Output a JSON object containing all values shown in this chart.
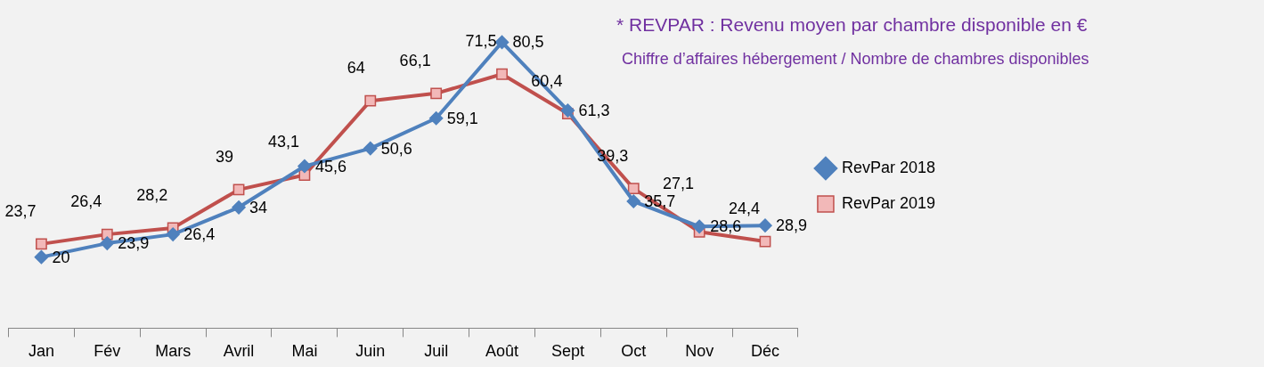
{
  "chart_data": {
    "type": "line",
    "categories": [
      "Jan",
      "Fév",
      "Mars",
      "Avril",
      "Mai",
      "Juin",
      "Juil",
      "Août",
      "Sept",
      "Oct",
      "Nov",
      "Déc"
    ],
    "series": [
      {
        "name": "RevPar 2018",
        "color": "#4f81bd",
        "marker": "diamond",
        "values": [
          20,
          23.9,
          26.4,
          34,
          45.6,
          50.6,
          59.1,
          80.5,
          61.3,
          35.7,
          28.6,
          28.9
        ],
        "value_labels": [
          "20",
          "23,9",
          "26,4",
          "34",
          "45,6",
          "50,6",
          "59,1",
          "80,5",
          "61,3",
          "35,7",
          "28,6",
          "28,9"
        ]
      },
      {
        "name": "RevPar 2019",
        "color": "#c0504d",
        "marker": "square",
        "values": [
          23.7,
          26.4,
          28.2,
          39,
          43.1,
          64,
          66.1,
          71.5,
          60.4,
          39.3,
          27.1,
          24.4
        ],
        "value_labels": [
          "23,7",
          "26,4",
          "28,2",
          "39",
          "43,1",
          "64",
          "66,1",
          "71,5",
          "60,4",
          "39,3",
          "27,1",
          "24,4"
        ]
      }
    ],
    "tick_labels": "x",
    "legend": "right",
    "grid": false,
    "annotations": [
      "* REVPAR : Revenu moyen par chambre disponible  en €",
      "Chiffre d’affaires hébergement / Nombre de chambres disponibles"
    ]
  }
}
